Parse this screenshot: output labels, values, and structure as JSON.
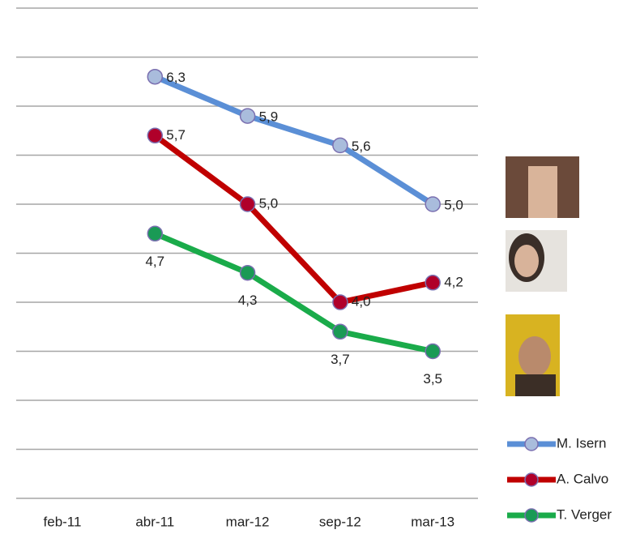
{
  "chart_data": {
    "type": "line",
    "categories": [
      "feb-11",
      "abr-11",
      "mar-12",
      "sep-12",
      "mar-13"
    ],
    "series": [
      {
        "name": "M. Isern",
        "color": "#5b8fd6",
        "marker_color": "#a9bcdc",
        "values": [
          null,
          6.3,
          5.9,
          5.6,
          5.0
        ],
        "value_labels": [
          null,
          "6,3",
          "5,9",
          "5,6",
          "5,0"
        ]
      },
      {
        "name": "A. Calvo",
        "color": "#c00000",
        "marker_color": "#b0002a",
        "values": [
          null,
          5.7,
          5.0,
          4.0,
          4.2
        ],
        "value_labels": [
          null,
          "5,7",
          "5,0",
          "4,0",
          "4,2"
        ]
      },
      {
        "name": "T. Verger",
        "color": "#1aab4a",
        "marker_color": "#1a9a55",
        "values": [
          null,
          4.7,
          4.3,
          3.7,
          3.5
        ],
        "value_labels": [
          null,
          "4,7",
          "4,3",
          "3,7",
          "3,5"
        ]
      }
    ],
    "ylim": [
      2,
      7
    ],
    "yticks": [
      2,
      2.5,
      3,
      3.5,
      4,
      4.5,
      5,
      5.5,
      6,
      6.5,
      7
    ],
    "grid": true,
    "legend": "bottom-right"
  }
}
